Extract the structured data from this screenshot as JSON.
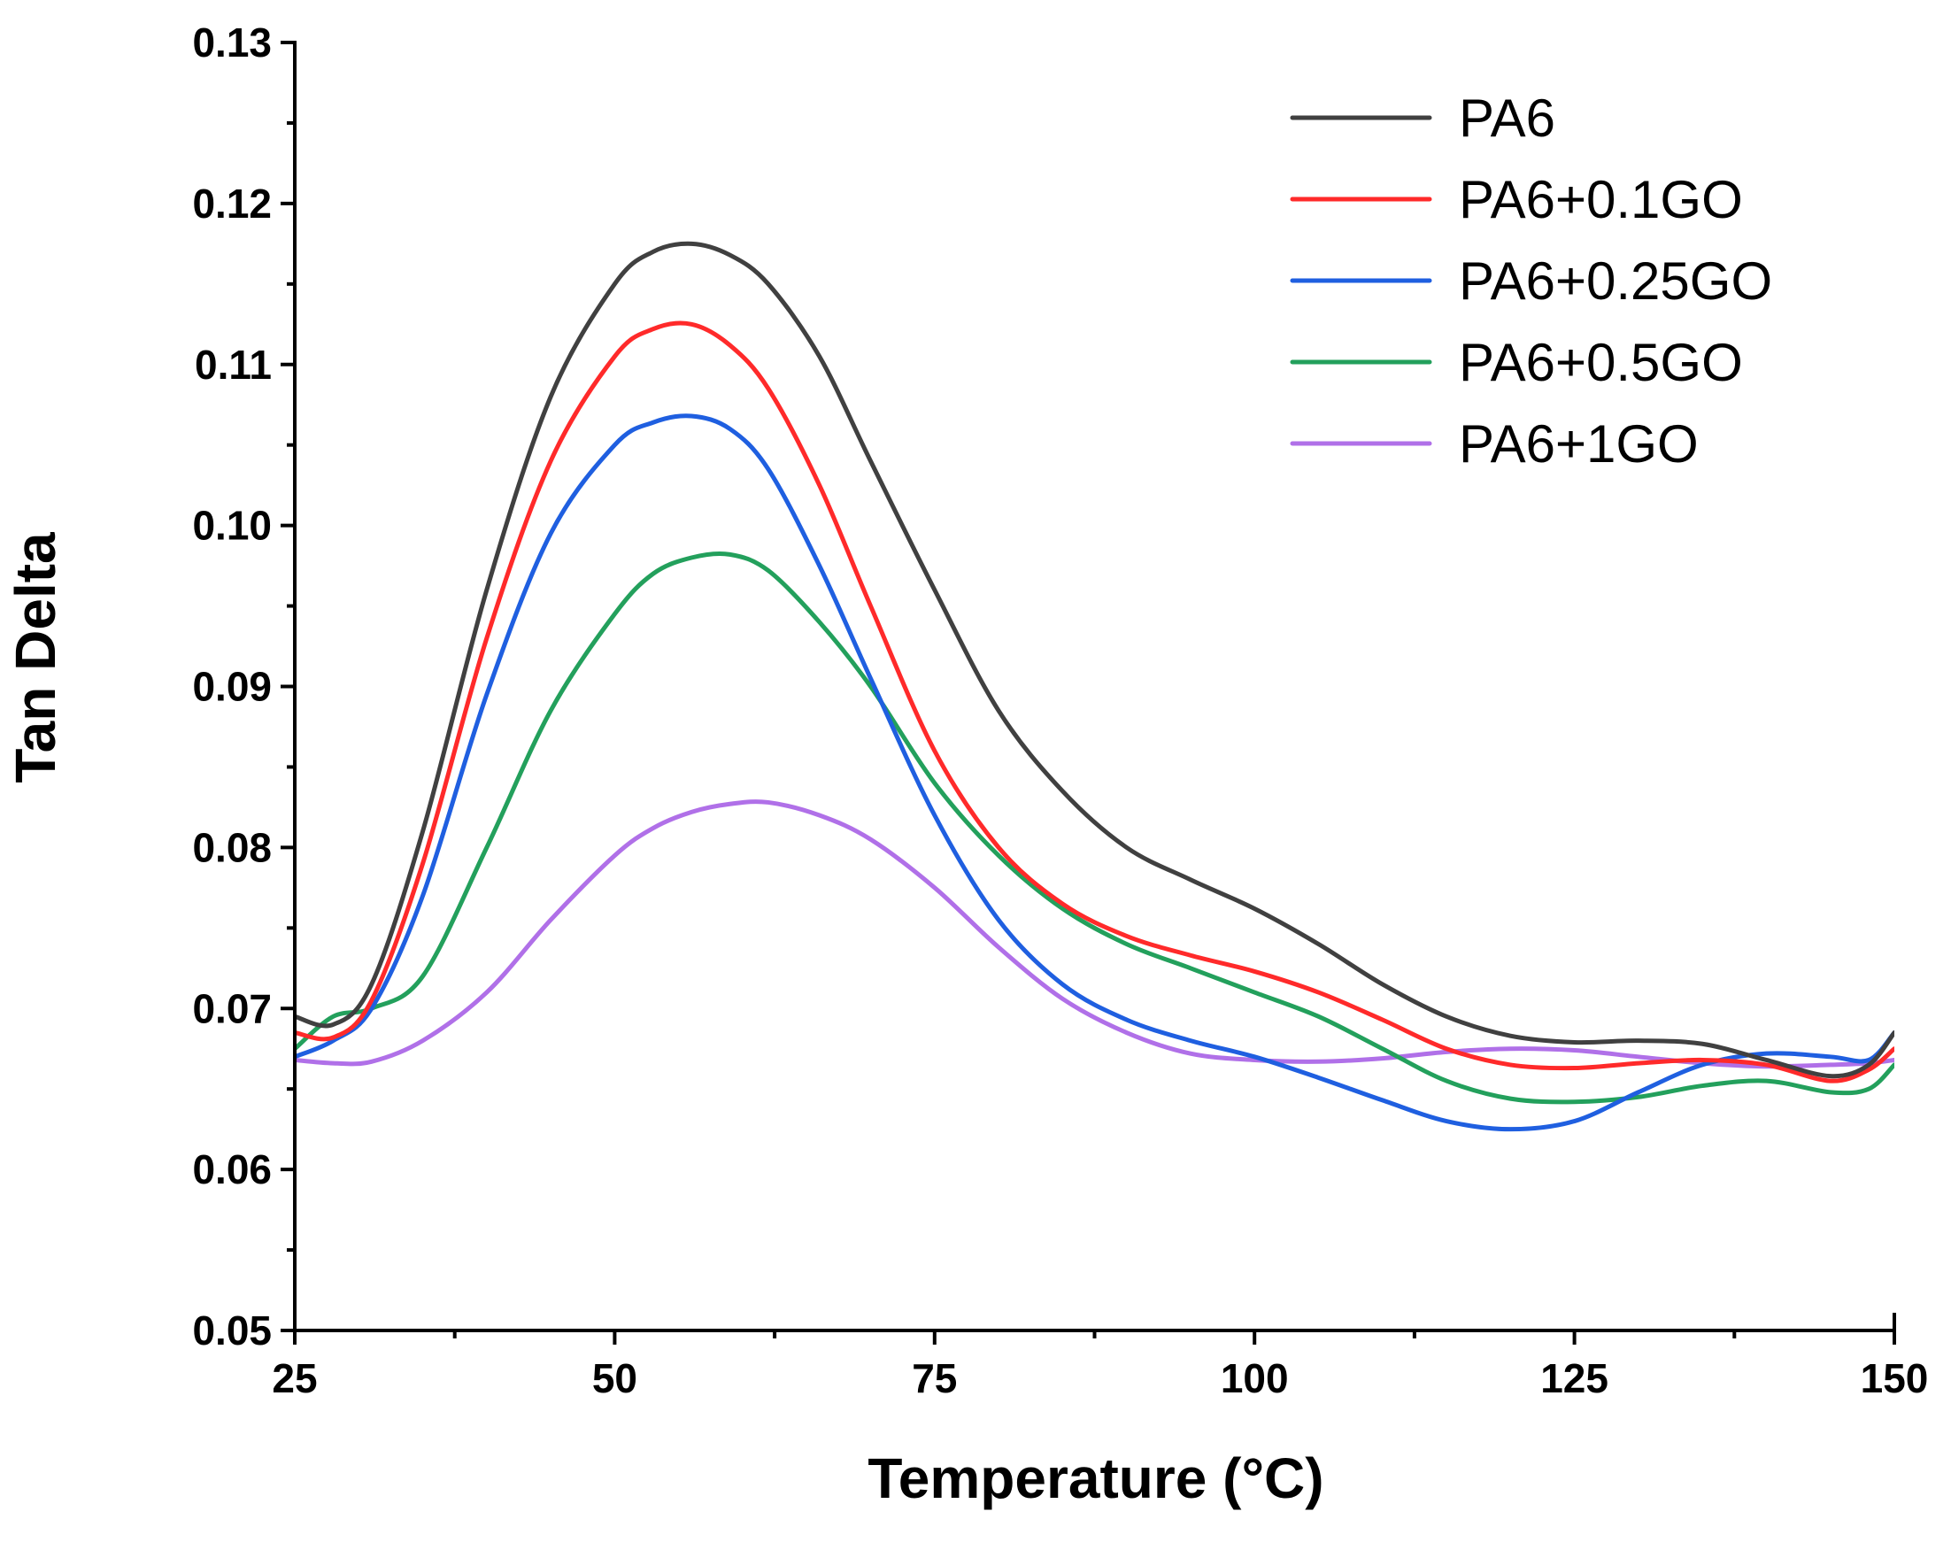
{
  "chart_data": {
    "type": "line",
    "title": "",
    "xlabel": "Temperature (°C)",
    "ylabel": "Tan Delta",
    "xlim": [
      25,
      150
    ],
    "ylim": [
      0.05,
      0.13
    ],
    "xticks": [
      25,
      50,
      75,
      100,
      125,
      150
    ],
    "xtick_labels": [
      "25",
      "50",
      "75",
      "100",
      "125",
      "150"
    ],
    "yticks": [
      0.05,
      0.06,
      0.07,
      0.08,
      0.09,
      0.1,
      0.11,
      0.12,
      0.13
    ],
    "ytick_labels": [
      "0.05",
      "0.06",
      "0.07",
      "0.08",
      "0.09",
      "0.10",
      "0.11",
      "0.12",
      "0.13"
    ],
    "grid": false,
    "legend_position": "top-right",
    "series": [
      {
        "name": "PA6",
        "color": "#404040",
        "x": [
          25,
          28,
          31,
          35,
          40,
          45,
          50,
          53,
          56,
          59,
          62,
          66,
          70,
          75,
          80,
          85,
          90,
          95,
          100,
          105,
          110,
          115,
          120,
          125,
          130,
          135,
          140,
          145,
          148,
          150
        ],
        "y": [
          0.0695,
          0.069,
          0.0715,
          0.081,
          0.096,
          0.108,
          0.115,
          0.117,
          0.1175,
          0.1168,
          0.115,
          0.1105,
          0.104,
          0.096,
          0.0885,
          0.0835,
          0.08,
          0.078,
          0.0762,
          0.074,
          0.0715,
          0.0695,
          0.0683,
          0.0679,
          0.068,
          0.0678,
          0.0668,
          0.0658,
          0.0665,
          0.0685
        ]
      },
      {
        "name": "PA6+0.1GO",
        "color": "#ff2a2a",
        "x": [
          25,
          28,
          31,
          35,
          40,
          45,
          50,
          53,
          56,
          59,
          62,
          66,
          70,
          75,
          80,
          85,
          90,
          95,
          100,
          105,
          110,
          115,
          120,
          125,
          130,
          135,
          140,
          145,
          148,
          150
        ],
        "y": [
          0.0685,
          0.0682,
          0.0705,
          0.079,
          0.093,
          0.104,
          0.1105,
          0.1122,
          0.1125,
          0.1112,
          0.1085,
          0.1025,
          0.095,
          0.086,
          0.08,
          0.0765,
          0.0745,
          0.0733,
          0.0723,
          0.071,
          0.0693,
          0.0675,
          0.0665,
          0.0663,
          0.0666,
          0.0668,
          0.0665,
          0.0655,
          0.0662,
          0.0675
        ]
      },
      {
        "name": "PA6+0.25GO",
        "color": "#1f5fe0",
        "x": [
          25,
          28,
          31,
          35,
          40,
          45,
          50,
          53,
          56,
          59,
          62,
          66,
          70,
          75,
          80,
          85,
          90,
          95,
          100,
          105,
          110,
          115,
          120,
          125,
          130,
          135,
          140,
          145,
          148,
          150
        ],
        "y": [
          0.067,
          0.068,
          0.07,
          0.077,
          0.0895,
          0.0995,
          0.105,
          0.1064,
          0.1068,
          0.106,
          0.1035,
          0.0975,
          0.0905,
          0.082,
          0.0755,
          0.0715,
          0.0693,
          0.068,
          0.067,
          0.0657,
          0.0643,
          0.063,
          0.0625,
          0.063,
          0.0648,
          0.0665,
          0.0672,
          0.067,
          0.0668,
          0.0685
        ]
      },
      {
        "name": "PA6+0.5GO",
        "color": "#23a05c",
        "x": [
          25,
          28,
          31,
          35,
          40,
          45,
          50,
          53,
          56,
          59,
          62,
          66,
          70,
          75,
          80,
          85,
          90,
          95,
          100,
          105,
          110,
          115,
          120,
          125,
          130,
          135,
          140,
          145,
          148,
          150
        ],
        "y": [
          0.0675,
          0.0695,
          0.07,
          0.072,
          0.08,
          0.0885,
          0.0945,
          0.097,
          0.098,
          0.0982,
          0.0972,
          0.094,
          0.09,
          0.084,
          0.0795,
          0.0762,
          0.074,
          0.0725,
          0.071,
          0.0695,
          0.0675,
          0.0655,
          0.0644,
          0.0642,
          0.0645,
          0.0652,
          0.0655,
          0.0648,
          0.065,
          0.0665
        ]
      },
      {
        "name": "PA6+1GO",
        "color": "#b070e8",
        "x": [
          25,
          28,
          31,
          35,
          40,
          45,
          50,
          53,
          56,
          59,
          62,
          66,
          70,
          75,
          80,
          85,
          90,
          95,
          100,
          105,
          110,
          115,
          120,
          125,
          130,
          135,
          140,
          145,
          148,
          150
        ],
        "y": [
          0.0668,
          0.0666,
          0.0667,
          0.068,
          0.071,
          0.0755,
          0.0795,
          0.0812,
          0.0822,
          0.0827,
          0.0828,
          0.082,
          0.0805,
          0.0775,
          0.0738,
          0.0706,
          0.0685,
          0.0672,
          0.0668,
          0.0667,
          0.0669,
          0.0673,
          0.0675,
          0.0674,
          0.067,
          0.0666,
          0.0664,
          0.0665,
          0.0666,
          0.0668
        ]
      }
    ]
  }
}
